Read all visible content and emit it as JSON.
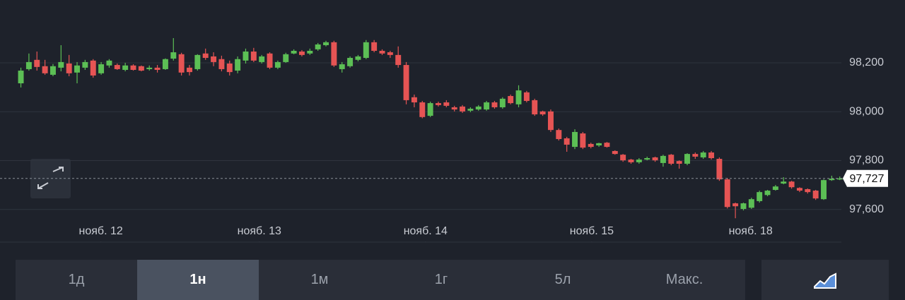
{
  "chart_data": {
    "type": "candlestick",
    "up_color": "#5cbf55",
    "down_color": "#e65454",
    "xlim": [
      -0.4,
      102.2
    ],
    "xticks": [
      {
        "value": 9.96,
        "label": "нояб. 12"
      },
      {
        "value": 29.7,
        "label": "нояб. 13"
      },
      {
        "value": 50.4,
        "label": "нояб. 14"
      },
      {
        "value": 71.1,
        "label": "нояб. 15"
      },
      {
        "value": 90.9,
        "label": "нояб. 18"
      }
    ],
    "ylim": [
      97475,
      98428
    ],
    "yticks": [
      {
        "value": 97600,
        "label": "97,600"
      },
      {
        "value": 97800,
        "label": "97,800"
      },
      {
        "value": 98000,
        "label": "98,000"
      },
      {
        "value": 98200,
        "label": "98,200"
      }
    ],
    "grid": true,
    "last_price": {
      "value": 97727,
      "label": "97,727"
    },
    "open": [
      98116,
      98174,
      98212,
      98186,
      98151,
      98180,
      98197,
      98160,
      98180,
      98209,
      98157,
      98189,
      98191,
      98171,
      98189,
      98186,
      98174,
      98180,
      98174,
      98217,
      98235,
      98180,
      98174,
      98238,
      98226,
      98215,
      98197,
      98168,
      98209,
      98246,
      98203,
      98238,
      98180,
      98203,
      98238,
      98246,
      98238,
      98255,
      98272,
      98284,
      98174,
      98186,
      98212,
      98220,
      98284,
      98249,
      98243,
      98232,
      98191,
      98059,
      98038,
      97983,
      98035,
      98038,
      98018,
      98021,
      98004,
      98009,
      98009,
      98038,
      98018,
      98064,
      98030,
      98079,
      98047,
      98001,
      98001,
      97925,
      97891,
      97856,
      97911,
      97868,
      97862,
      97873,
      97839,
      97824,
      97804,
      97793,
      97804,
      97813,
      97790,
      97824,
      97798,
      97787,
      97827,
      97813,
      97833,
      97807,
      97723,
      97625,
      97602,
      97607,
      97634,
      97659,
      97680,
      97706,
      97714,
      97688,
      97683,
      97677,
      97642,
      97720,
      97724
    ],
    "high": [
      98180,
      98238,
      98246,
      98212,
      98195,
      98272,
      98232,
      98203,
      98212,
      98215,
      98203,
      98215,
      98197,
      98200,
      98194,
      98189,
      98189,
      98191,
      98218,
      98301,
      98241,
      98191,
      98235,
      98258,
      98243,
      98229,
      98209,
      98226,
      98258,
      98261,
      98232,
      98243,
      98209,
      98241,
      98255,
      98252,
      98258,
      98281,
      98290,
      98290,
      98203,
      98226,
      98232,
      98293,
      98293,
      98255,
      98249,
      98267,
      98203,
      98070,
      98044,
      98041,
      98041,
      98047,
      98024,
      98027,
      98018,
      98027,
      98044,
      98044,
      98059,
      98070,
      98108,
      98085,
      98053,
      98004,
      98009,
      97931,
      97897,
      97928,
      97917,
      97873,
      97873,
      97876,
      97842,
      97827,
      97807,
      97810,
      97816,
      97816,
      97824,
      97827,
      97801,
      97830,
      97833,
      97839,
      97839,
      97813,
      97729,
      97628,
      97628,
      97648,
      97677,
      97680,
      97700,
      97732,
      97717,
      97691,
      97686,
      97680,
      97723,
      97738,
      97735
    ],
    "low": [
      98099,
      98168,
      98168,
      98151,
      98145,
      98165,
      98145,
      98116,
      98171,
      98139,
      98151,
      98180,
      98171,
      98165,
      98168,
      98165,
      98168,
      98160,
      98171,
      98209,
      98148,
      98148,
      98168,
      98212,
      98186,
      98165,
      98148,
      98157,
      98197,
      98203,
      98197,
      98174,
      98174,
      98200,
      98235,
      98226,
      98232,
      98249,
      98267,
      98183,
      98160,
      98180,
      98206,
      98215,
      98243,
      98232,
      98220,
      98180,
      98030,
      98018,
      97973,
      97978,
      98021,
      98018,
      98001,
      97995,
      97998,
      98004,
      98004,
      98012,
      98012,
      98030,
      98018,
      98038,
      97983,
      97983,
      97917,
      97882,
      97836,
      97847,
      97847,
      97850,
      97856,
      97853,
      97824,
      97795,
      97787,
      97787,
      97801,
      97795,
      97775,
      97781,
      97767,
      97781,
      97807,
      97807,
      97804,
      97717,
      97604,
      97564,
      97596,
      97602,
      97628,
      97654,
      97677,
      97703,
      97685,
      97671,
      97665,
      97639,
      97639,
      97717,
      97720
    ],
    "close": [
      98168,
      98203,
      98183,
      98157,
      98186,
      98203,
      98157,
      98189,
      98203,
      98148,
      98194,
      98209,
      98174,
      98189,
      98171,
      98168,
      98180,
      98171,
      98215,
      98243,
      98160,
      98162,
      98232,
      98220,
      98203,
      98174,
      98162,
      98215,
      98246,
      98209,
      98226,
      98180,
      98203,
      98235,
      98249,
      98232,
      98249,
      98275,
      98284,
      98189,
      98194,
      98220,
      98226,
      98284,
      98249,
      98238,
      98232,
      98191,
      98047,
      98038,
      97978,
      98035,
      98027,
      98024,
      98009,
      98001,
      98012,
      98021,
      98038,
      98018,
      98053,
      98035,
      98087,
      98044,
      97989,
      97989,
      97925,
      97888,
      97865,
      97917,
      97853,
      97856,
      97871,
      97856,
      97827,
      97801,
      97793,
      97804,
      97810,
      97801,
      97819,
      97787,
      97787,
      97827,
      97816,
      97833,
      97810,
      97723,
      97610,
      97613,
      97625,
      97642,
      97671,
      97677,
      97694,
      97714,
      97691,
      97677,
      97671,
      97645,
      97720,
      97726,
      97727
    ]
  },
  "range_buttons": [
    "1д",
    "1н",
    "1м",
    "1г",
    "5л",
    "Макс."
  ],
  "selected_range": 1
}
